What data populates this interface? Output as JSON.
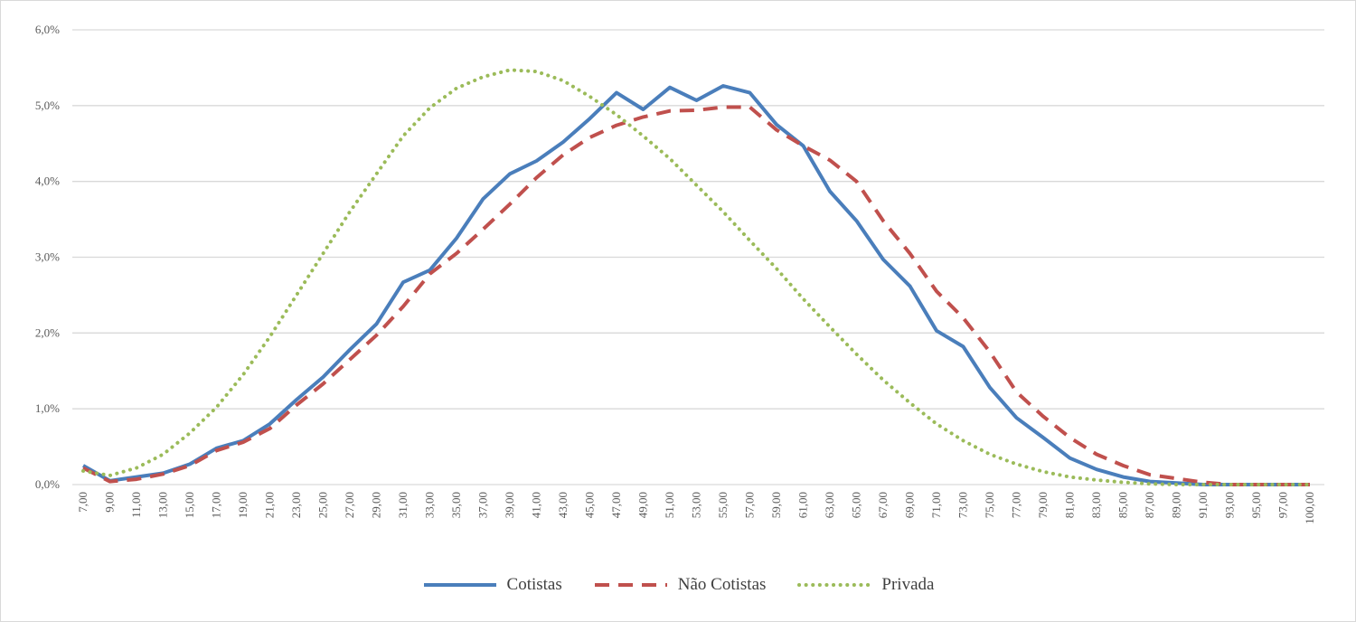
{
  "chart_data": {
    "type": "line",
    "title": "",
    "xlabel": "",
    "ylabel": "",
    "ylim": [
      0,
      6
    ],
    "yticks": [
      "0,0%",
      "1,0%",
      "2,0%",
      "3,0%",
      "4,0%",
      "5,0%",
      "6,0%"
    ],
    "grid": true,
    "legend_position": "bottom",
    "categories": [
      "7,00",
      "9,00",
      "11,00",
      "13,00",
      "15,00",
      "17,00",
      "19,00",
      "21,00",
      "23,00",
      "25,00",
      "27,00",
      "29,00",
      "31,00",
      "33,00",
      "35,00",
      "37,00",
      "39,00",
      "41,00",
      "43,00",
      "45,00",
      "47,00",
      "49,00",
      "51,00",
      "53,00",
      "55,00",
      "57,00",
      "59,00",
      "61,00",
      "63,00",
      "65,00",
      "67,00",
      "69,00",
      "71,00",
      "73,00",
      "75,00",
      "77,00",
      "79,00",
      "81,00",
      "83,00",
      "85,00",
      "87,00",
      "89,00",
      "91,00",
      "93,00",
      "95,00",
      "97,00",
      "100,00"
    ],
    "series": [
      {
        "name": "Cotistas",
        "color": "#4a7ebb",
        "style": "solid",
        "values": [
          0.25,
          0.05,
          0.1,
          0.15,
          0.27,
          0.48,
          0.58,
          0.8,
          1.12,
          1.42,
          1.78,
          2.12,
          2.67,
          2.83,
          3.25,
          3.77,
          4.1,
          4.27,
          4.52,
          4.83,
          5.17,
          4.95,
          5.24,
          5.07,
          5.26,
          5.17,
          4.75,
          4.47,
          3.87,
          3.48,
          2.97,
          2.62,
          2.03,
          1.82,
          1.28,
          0.88,
          0.62,
          0.35,
          0.2,
          0.1,
          0.04,
          0.02,
          0,
          0,
          0,
          0,
          0
        ]
      },
      {
        "name": "Não Cotistas",
        "color": "#c0504d",
        "style": "dashed",
        "values": [
          0.22,
          0.04,
          0.07,
          0.14,
          0.25,
          0.45,
          0.56,
          0.74,
          1.05,
          1.33,
          1.65,
          1.97,
          2.35,
          2.78,
          3.05,
          3.37,
          3.7,
          4.05,
          4.35,
          4.58,
          4.74,
          4.85,
          4.93,
          4.94,
          4.98,
          4.98,
          4.68,
          4.47,
          4.28,
          4.0,
          3.48,
          3.05,
          2.55,
          2.2,
          1.75,
          1.22,
          0.9,
          0.62,
          0.4,
          0.25,
          0.13,
          0.08,
          0.03,
          0,
          0,
          0,
          0
        ]
      },
      {
        "name": "Privada",
        "color": "#9bbb59",
        "style": "dotted",
        "values": [
          0.18,
          0.12,
          0.22,
          0.4,
          0.68,
          1.02,
          1.45,
          1.95,
          2.5,
          3.05,
          3.6,
          4.1,
          4.6,
          4.97,
          5.23,
          5.38,
          5.47,
          5.45,
          5.33,
          5.12,
          4.88,
          4.6,
          4.3,
          3.95,
          3.6,
          3.22,
          2.85,
          2.45,
          2.08,
          1.72,
          1.38,
          1.08,
          0.8,
          0.58,
          0.4,
          0.27,
          0.17,
          0.1,
          0.06,
          0.03,
          0.01,
          0,
          0,
          0,
          0,
          0,
          0
        ]
      }
    ]
  }
}
